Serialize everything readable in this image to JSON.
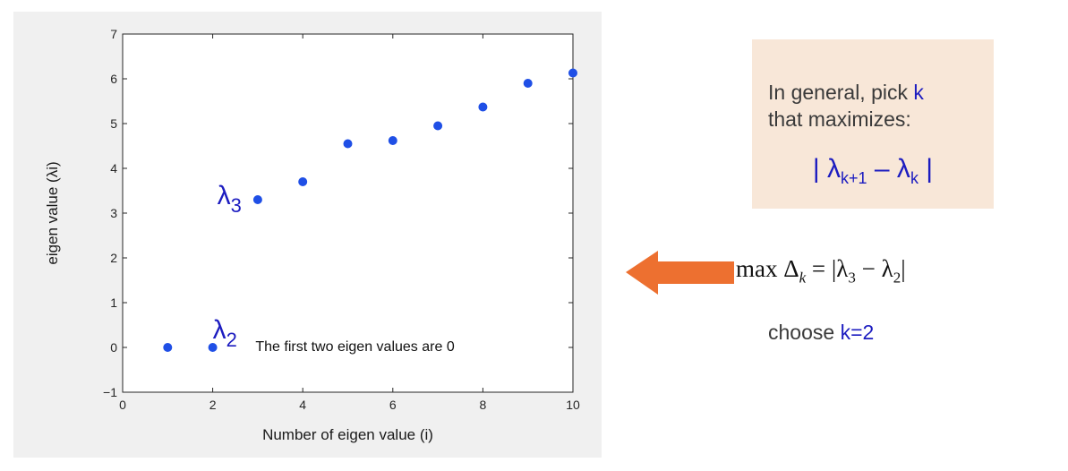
{
  "chart_data": {
    "type": "scatter",
    "xlabel": "Number of eigen value (i)",
    "ylabel": "eigen value (λi)",
    "xlim": [
      0,
      10
    ],
    "ylim": [
      -1,
      7
    ],
    "xticks": [
      "0",
      "2",
      "4",
      "6",
      "8",
      "10"
    ],
    "yticks": [
      "−1",
      "0",
      "1",
      "2",
      "3",
      "4",
      "5",
      "6",
      "7"
    ],
    "x": [
      1,
      2,
      3,
      4,
      5,
      6,
      7,
      8,
      9,
      10
    ],
    "y": [
      0,
      0,
      3.3,
      3.7,
      4.55,
      4.62,
      4.95,
      5.37,
      5.9,
      6.13
    ],
    "marker_color": "#1f4fe6",
    "grid": false,
    "annotations": [
      {
        "text": "The first two eigen values are 0",
        "x": 2.95,
        "y": -0.08
      },
      {
        "text": "λ2",
        "x": 2.0,
        "y": 0.2,
        "base": "λ",
        "sub": "2"
      },
      {
        "text": "λ3",
        "x": 2.1,
        "y": 3.2,
        "base": "λ",
        "sub": "3"
      }
    ]
  },
  "info_box": {
    "line1_prefix": "In general, pick ",
    "line1_keyword": "k",
    "line2": "that maximizes:",
    "formula_open": "| λ",
    "formula_sub1": "k+1",
    "formula_minus": " – λ",
    "formula_sub2": "k",
    "formula_close": " |",
    "background": "#f8e7d8"
  },
  "result": {
    "max_prefix": "max Δ",
    "max_sub": "k",
    "max_eq": " = |λ",
    "max_sub3": "3",
    "max_minus": " − λ",
    "max_sub2": "2",
    "max_close": "|",
    "choose_prefix": "choose ",
    "choose_value": "k=2"
  },
  "arrow": {
    "direction": "left",
    "color": "#ed7030"
  }
}
